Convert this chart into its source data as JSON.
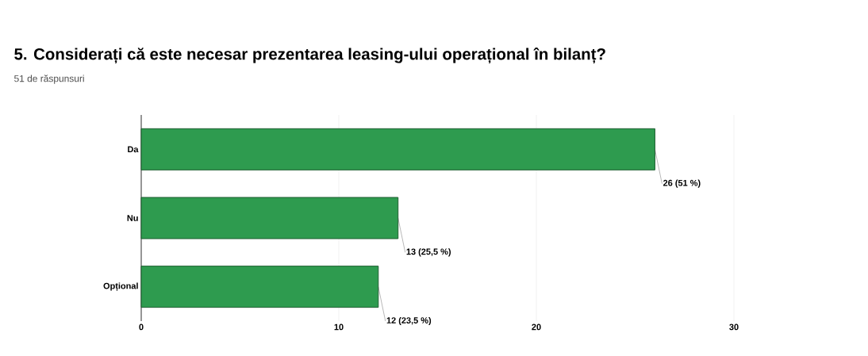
{
  "chart_data": {
    "type": "bar",
    "orientation": "horizontal",
    "title": "5. Considerați că este necesar prezentarea leasing-ului operațional în bilanț?",
    "subtitle": "51 de răspunsuri",
    "categories": [
      "Da",
      "Nu",
      "Opțional"
    ],
    "values": [
      26,
      13,
      12
    ],
    "value_labels": [
      "26 (51 %)",
      "13 (25,5 %)",
      "12 (23,5 %)"
    ],
    "color": "#2e9b4f",
    "xlim": [
      0,
      30
    ],
    "xticks": [
      0,
      10,
      20,
      30
    ],
    "grid": "x"
  }
}
